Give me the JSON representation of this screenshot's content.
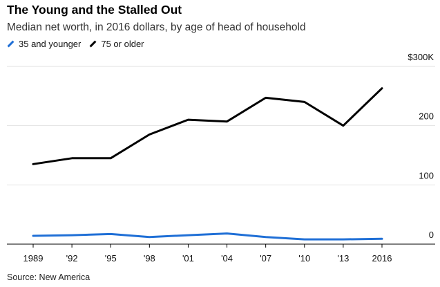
{
  "header": {
    "title": "The Young and the Stalled Out",
    "subtitle": "Median net worth, in 2016 dollars, by age of head of household"
  },
  "legend": [
    {
      "name": "35 and younger",
      "color": "#1f6fd6"
    },
    {
      "name": "75 or older",
      "color": "#000000"
    }
  ],
  "source": "Source: New America",
  "chart_data": {
    "type": "line",
    "x": [
      "1989",
      "'92",
      "'95",
      "'98",
      "'01",
      "'04",
      "'07",
      "'10",
      "'13",
      "2016"
    ],
    "series": [
      {
        "name": "35 and younger",
        "color": "#1f6fd6",
        "values": [
          14,
          15,
          17,
          12,
          15,
          18,
          12,
          8,
          8,
          9
        ]
      },
      {
        "name": "75 or older",
        "color": "#000000",
        "values": [
          135,
          145,
          145,
          185,
          210,
          207,
          247,
          240,
          200,
          263
        ]
      }
    ],
    "y_ticks": [
      {
        "value": 0,
        "label": "0"
      },
      {
        "value": 100,
        "label": "100"
      },
      {
        "value": 200,
        "label": "200"
      },
      {
        "value": 300,
        "label": "$300K"
      }
    ],
    "ylim": [
      0,
      300
    ],
    "grid": true
  }
}
